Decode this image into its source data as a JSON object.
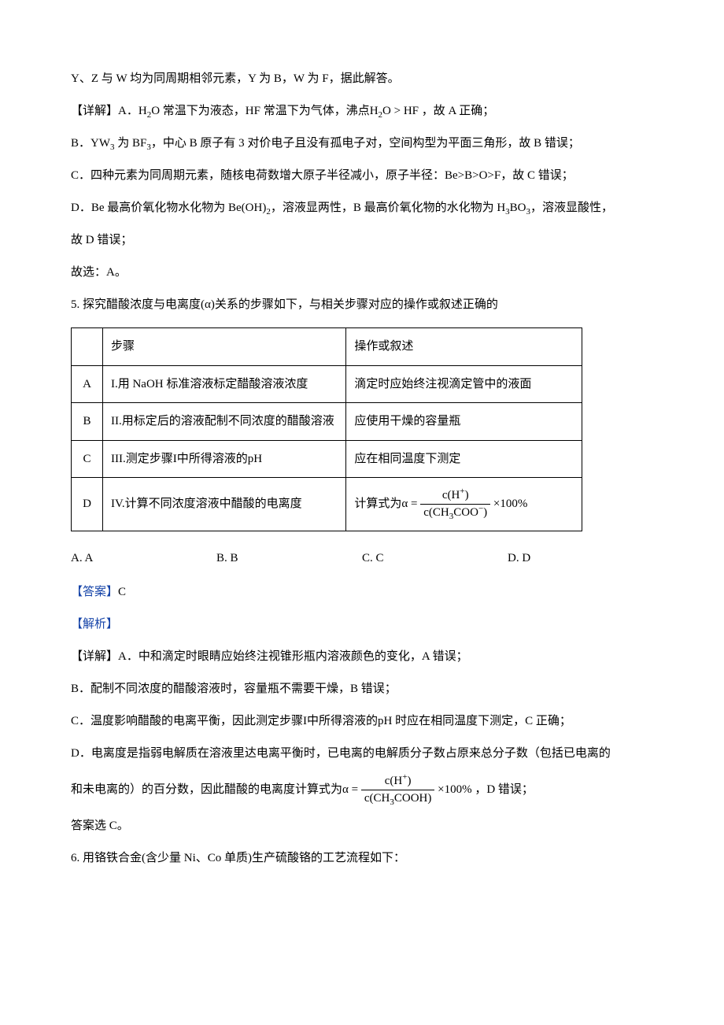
{
  "intro": {
    "p1": "Y、Z 与 W 均为同周期相邻元素，Y 为 B，W 为 F，据此解答。",
    "p2_a": "【详解】A．",
    "p2_b": "H",
    "p2_c": "O 常温下为液态，HF 常温下为气体，沸点",
    "p2_d": "H",
    "p2_e": "O > HF ，故 A 正确；",
    "p3_a": "B．",
    "p3_b": "YW",
    "p3_c": " 为 BF",
    "p3_d": "，中心 B 原子有 3 对价电子且没有孤电子对，空间构型为平面三角形，故 B 错误；",
    "p4": "C．四种元素为同周期元素，随核电荷数增大原子半径减小，原子半径：Be>B>O>F，故 C 错误；",
    "p5_a": "D．Be 最高价氧化物水化物为 Be(OH)",
    "p5_b": "，溶液显两性，B 最高价氧化物的水化物为 H",
    "p5_c": "BO",
    "p5_d": "，溶液显酸性，",
    "p6": "故 D 错误；",
    "p7": "故选：A。"
  },
  "q5": {
    "stem_a": "5. 探究醋酸浓度与电离度",
    "stem_b": "(α)",
    "stem_c": "关系的步骤如下，与相关步骤对应的操作或叙述正确的",
    "header1": "步骤",
    "header2": "操作或叙述",
    "rowA": {
      "k": "A",
      "step": "I.用 NaOH 标准溶液标定醋酸溶液浓度",
      "op": "滴定时应始终注视滴定管中的液面"
    },
    "rowB": {
      "k": "B",
      "step": "II.用标定后的溶液配制不同浓度的醋酸溶液",
      "op": "应使用干燥的容量瓶"
    },
    "rowC": {
      "k": "C",
      "step_a": "III.测定步骤I中所得溶液的",
      "step_b": "pH",
      "op": "应在相同温度下测定"
    },
    "rowD": {
      "k": "D",
      "step": "IV.计算不同浓度溶液中醋酸的电离度",
      "op_a": "计算式为",
      "op_alpha": "α =",
      "num_a": "c",
      "num_b": "(H",
      "num_c": "+",
      "num_d": ")",
      "den_a": "c",
      "den_b": "(CH",
      "den_c": "3",
      "den_d": "COO",
      "den_e": "−",
      "den_f": ")",
      "op_tail": "×100%"
    },
    "choiceA": "A. A",
    "choiceB": "B. B",
    "choiceC": "C. C",
    "choiceD": "D. D",
    "answer_label": "【答案】",
    "answer_val": "C",
    "analysis_label": "【解析】",
    "expA": "【详解】A．中和滴定时眼睛应始终注视锥形瓶内溶液颜色的变化，A 错误；",
    "expB": "B．配制不同浓度的醋酸溶液时，容量瓶不需要干燥，B 错误；",
    "expC_a": "C．温度影响醋酸的电离平衡，因此测定步骤I中所得溶液的",
    "expC_b": "pH",
    "expC_c": " 时应在相同温度下测定，C 正确；",
    "expD_a": "D．电离度是指弱电解质在溶液里达电离平衡时，已电离的电解质分子数占原来总分子数（包括已电离的",
    "expD_b": "和未电离的）的百分数，因此醋酸的电离度计算式为",
    "expD_alpha": "α =",
    "expD_num_a": "c",
    "expD_num_b": "(H",
    "expD_num_c": "+",
    "expD_num_d": ")",
    "expD_den_a": "c",
    "expD_den_b": "(CH",
    "expD_den_c": "3",
    "expD_den_d": "COOH)",
    "expD_tail": "×100% ，D 错误；",
    "final": "答案选 C。"
  },
  "q6": {
    "stem": "6. 用铬铁合金(含少量 Ni、Co 单质)生产硫酸铬的工艺流程如下："
  }
}
